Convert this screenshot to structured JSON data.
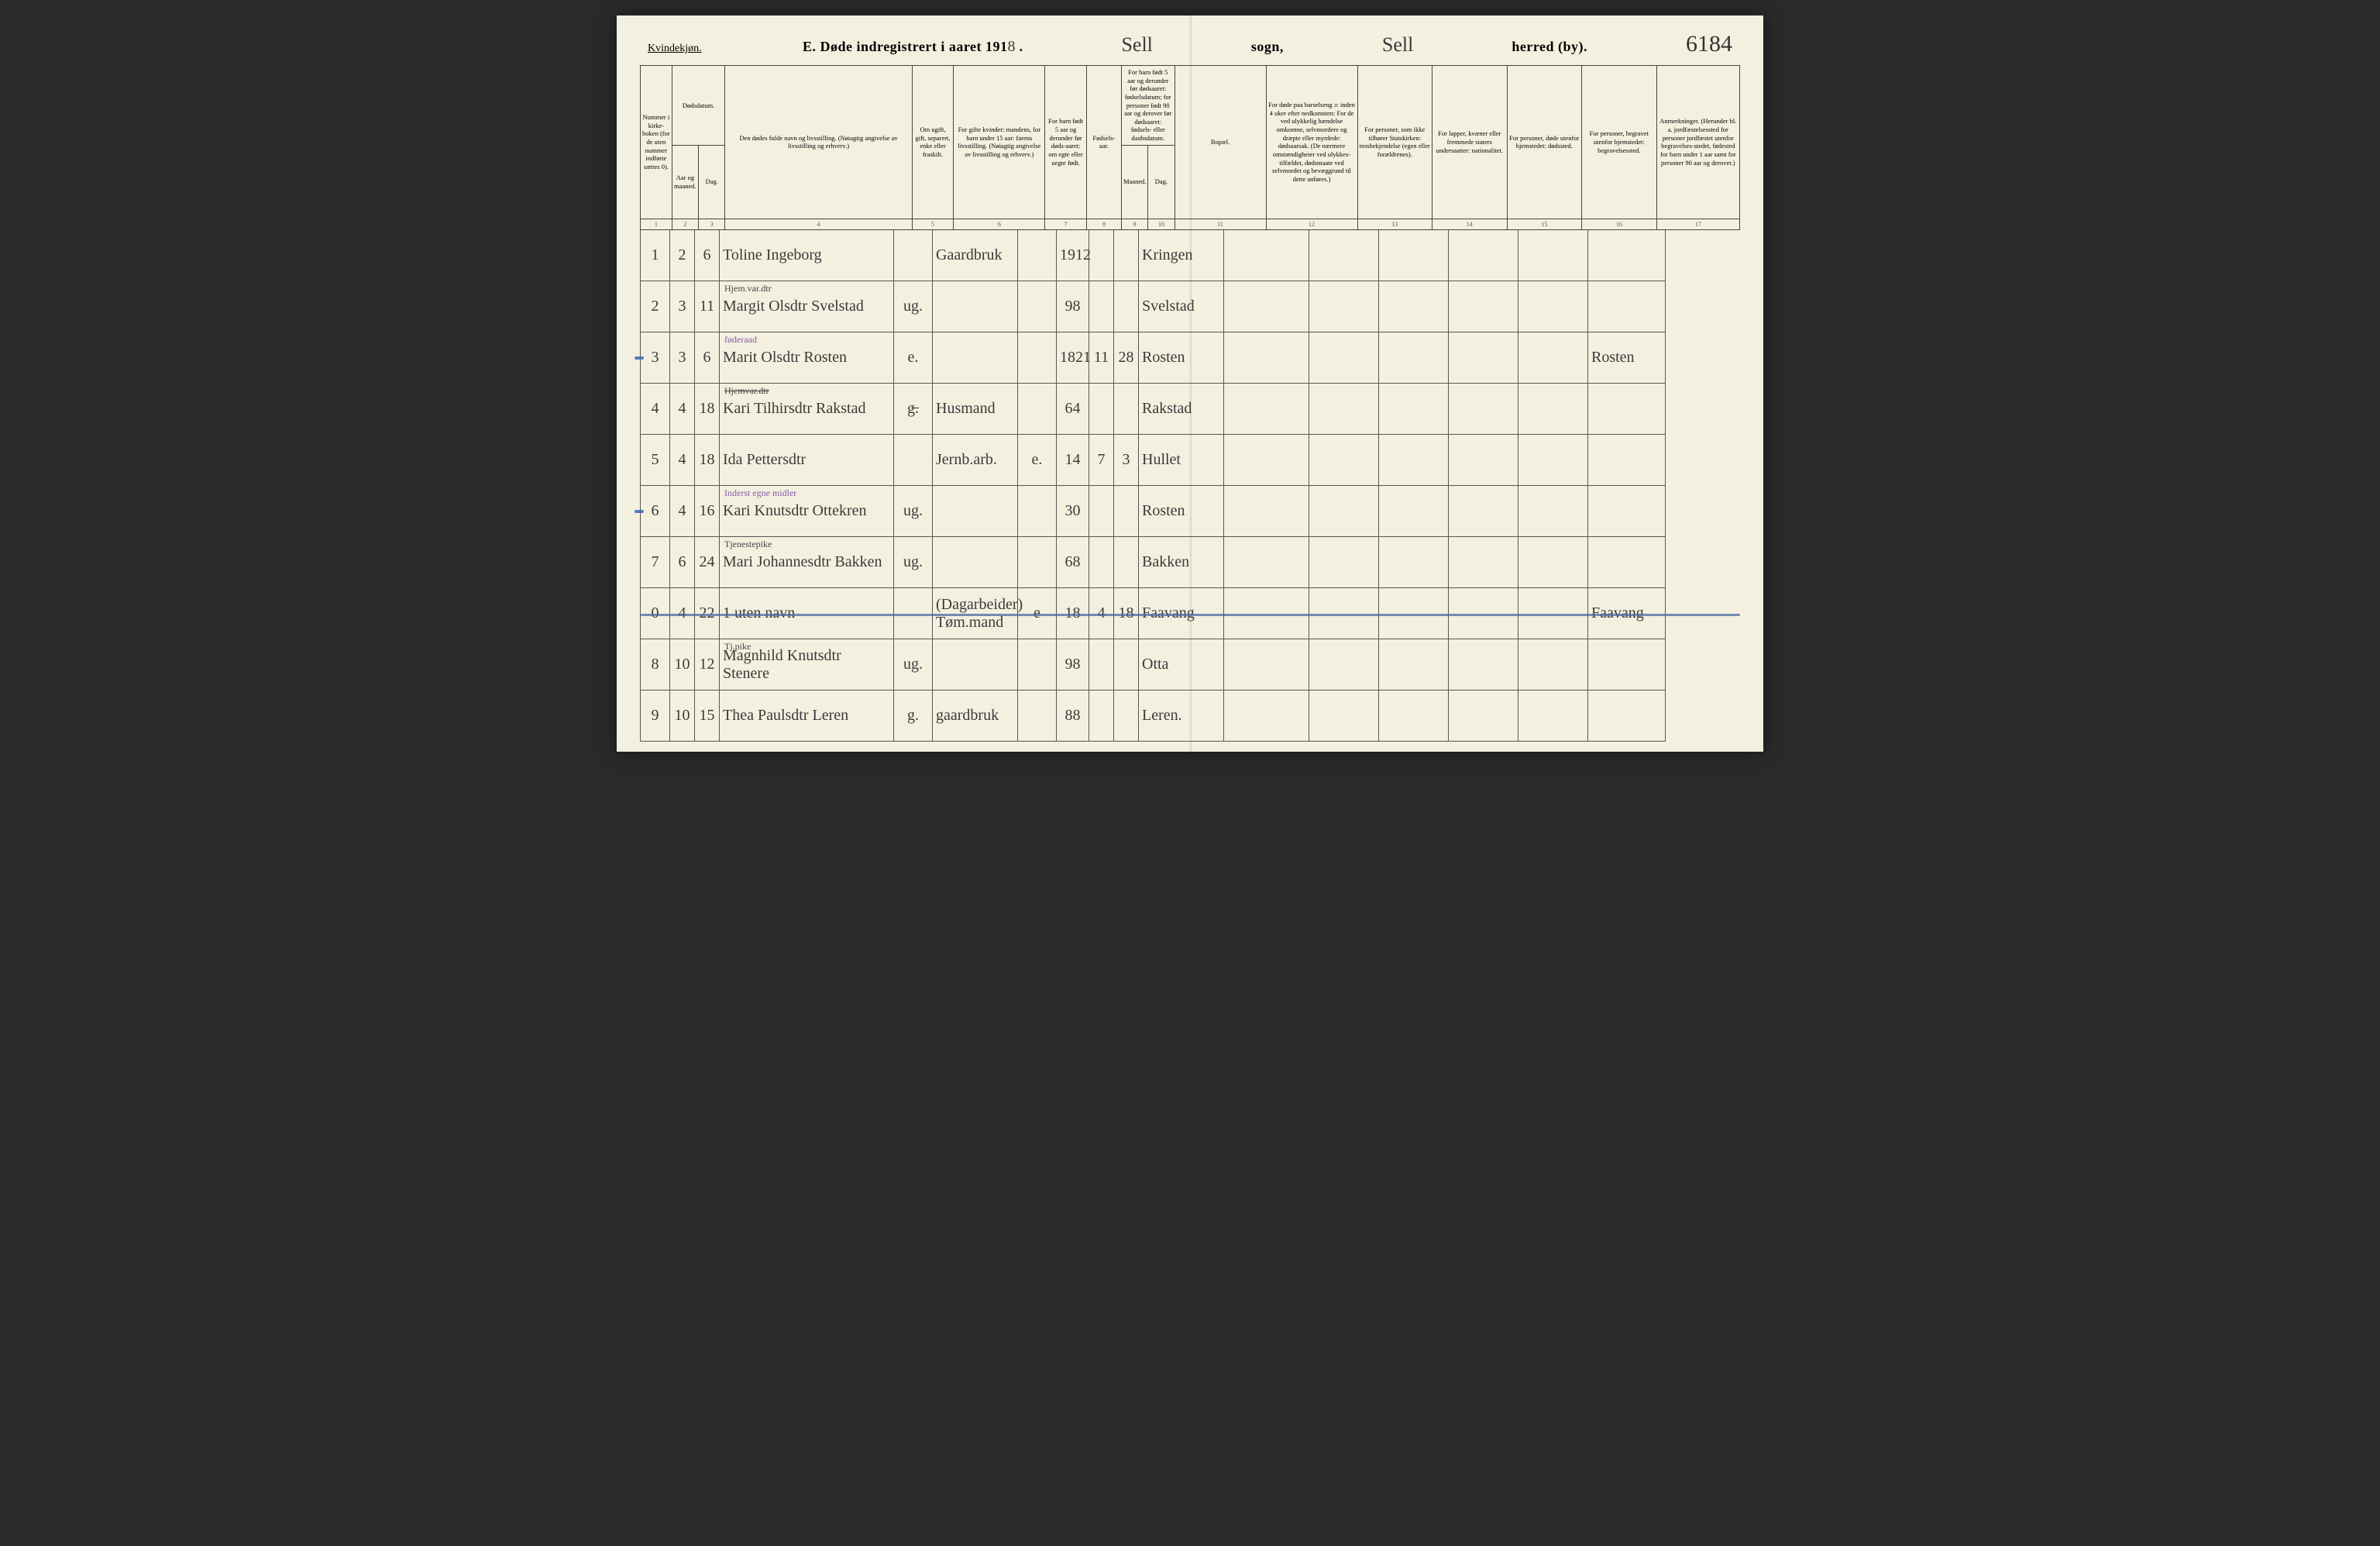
{
  "header": {
    "gender_label": "Kvindekjøn.",
    "title_prefix": "E.  Døde indregistrert i aaret 191",
    "year_suffix": "8",
    "sogn_label": "sogn,",
    "sogn_value": "Sell",
    "herred_label": "herred (by).",
    "herred_value": "Sell",
    "page_no": "6184"
  },
  "columns": {
    "c1": "Nummer i kirke-boken (for de uten nummer indførte sættes 0).",
    "c2_3": "Dødsdatum.",
    "c2": "Aar og maaned.",
    "c3": "Dag.",
    "c4": "Den dødes fulde navn og livsstilling. (Nøiagtig angivelse av livsstilling og erhverv.)",
    "c5": "Om ugift, gift, separert, enke eller fraskilt.",
    "c6": "For gifte kvinder: mandens, for barn under 15 aar: farens livsstilling. (Nøiagtig angivelse av livsstilling og erhverv.)",
    "c7": "For barn født 5 aar og derunder før døds-aaret: om egte eller uegte født.",
    "c8": "Fødsels-aar.",
    "c9_10": "For barn født 5 aar og derunder før dødsaaret: fødselsdatum; for personer født 90 aar og derover før dødsaaret: fødsels- eller daabsdatum.",
    "c9": "Maaned.",
    "c10": "Dag.",
    "c11": "Bopæl.",
    "c12": "For døde paa barselseng ɔ: inden 4 uker efter nedkomsten: For de ved ulykkelig hændelse omkomne, selvmordere og dræpte eller myrdede: dødsaarsak. (De nærmere omstændigheter ved ulykkes-tilfældet, dødsmaate ved selvmordet og bevæggrund til dette anføres.)",
    "c13": "For personer, som ikke tilhører Statskirken: trosbekjendelse (egen eller forældrenes).",
    "c14": "For lapper, kvæner eller fremmede staters undersaatter: nationalitet.",
    "c15": "For personer, døde utenfor hjemstedet: dødssted.",
    "c16": "For personer, begravet utenfor hjemstedet: begravelsessted.",
    "c17": "Anmerkninger. (Herunder bl. a. jordfæstelsessted for personer jordfæstet utenfor begravelses-stedet, fødested for barn under 1 aar samt for personer 90 aar og derover.)"
  },
  "colnums": [
    "1",
    "2",
    "3",
    "4",
    "5",
    "6",
    "7",
    "8",
    "9",
    "10",
    "11",
    "12",
    "13",
    "14",
    "15",
    "16",
    "17"
  ],
  "rows": [
    {
      "n": "1",
      "mo": "2",
      "dag": "6",
      "sup": "",
      "name": "Toline Ingeborg",
      "status": "",
      "c6": "Gaardbruk",
      "c7": "",
      "aar": "1912",
      "c9": "",
      "c10": "",
      "bopal": "Kringen",
      "c17": "",
      "struck": false,
      "mark": false
    },
    {
      "n": "2",
      "mo": "3",
      "dag": "11",
      "sup": "Hjem.var.dtr",
      "name": "Margit Olsdtr Svelstad",
      "status": "ug.",
      "c6": "",
      "c7": "",
      "aar": "98",
      "c9": "",
      "c10": "",
      "bopal": "Svelstad",
      "c17": "",
      "struck": false,
      "mark": false
    },
    {
      "n": "3",
      "mo": "3",
      "dag": "6",
      "sup": "føderaad",
      "name": "Marit Olsdtr Rosten",
      "status": "e.",
      "c6": "",
      "c7": "",
      "aar": "1821",
      "c9": "11",
      "c10": "28",
      "bopal": "Rosten",
      "c17": "Rosten",
      "struck": false,
      "mark": true,
      "supclass": "purple"
    },
    {
      "n": "4",
      "mo": "4",
      "dag": "18",
      "sup": "Hjemvar.dtr",
      "name": "Kari Tilhirsdtr Rakstad",
      "status": "g̶.",
      "c6": "Husmand",
      "c7": "",
      "aar": "64",
      "c9": "",
      "c10": "",
      "bopal": "Rakstad",
      "c17": "",
      "struck": false,
      "mark": false,
      "supstruck": true
    },
    {
      "n": "5",
      "mo": "4",
      "dag": "18",
      "sup": "",
      "name": "Ida Pettersdtr",
      "status": "",
      "c6": "Jernb.arb.",
      "c7": "e.",
      "aar": "14",
      "c9": "7",
      "c10": "3",
      "bopal": "Hullet",
      "c17": "",
      "struck": false,
      "mark": false
    },
    {
      "n": "6",
      "mo": "4",
      "dag": "16",
      "sup": "Inderst  egne midler",
      "name": "Kari Knutsdtr Ottekren",
      "status": "ug.",
      "c6": "",
      "c7": "",
      "aar": "30",
      "c9": "",
      "c10": "",
      "bopal": "Rosten",
      "c17": "",
      "struck": false,
      "mark": true,
      "supclass": "purple"
    },
    {
      "n": "7",
      "mo": "6",
      "dag": "24",
      "sup": "Tjenestepike",
      "name": "Mari Johannesdtr Bakken",
      "status": "ug.",
      "c6": "",
      "c7": "",
      "aar": "68",
      "c9": "",
      "c10": "",
      "bopal": "Bakken",
      "c17": "",
      "struck": false,
      "mark": false
    },
    {
      "n": "0",
      "mo": "4",
      "dag": "22",
      "sup": "",
      "name": "1 uten navn",
      "status": "",
      "c6": "(Dagarbeider) Tøm.mand",
      "c7": "e",
      "aar": "18",
      "c9": "4",
      "c10": "18",
      "bopal": "Faavang",
      "c17": "Faavang",
      "struck": true,
      "mark": false
    },
    {
      "n": "8",
      "mo": "10",
      "dag": "12",
      "sup": "Tj.pike",
      "name": "Magnhild Knutsdtr Stenere",
      "status": "ug.",
      "c6": "",
      "c7": "",
      "aar": "98",
      "c9": "",
      "c10": "",
      "bopal": "Otta",
      "c17": "",
      "struck": false,
      "mark": false
    },
    {
      "n": "9",
      "mo": "10",
      "dag": "15",
      "sup": "",
      "name": "Thea Paulsdtr Leren",
      "status": "g.",
      "c6": "gaardbruk",
      "c7": "",
      "aar": "88",
      "c9": "",
      "c10": "",
      "bopal": "Leren.",
      "c17": "",
      "struck": false,
      "mark": false
    }
  ],
  "style": {
    "paper_bg": "#f4f0e0",
    "ink": "#333333",
    "rule": "#444444",
    "blue_pencil": "#4a6aa0",
    "purple": "#8a5aa8",
    "header_font_pt": 8.5,
    "hand_font_pt": 26
  }
}
